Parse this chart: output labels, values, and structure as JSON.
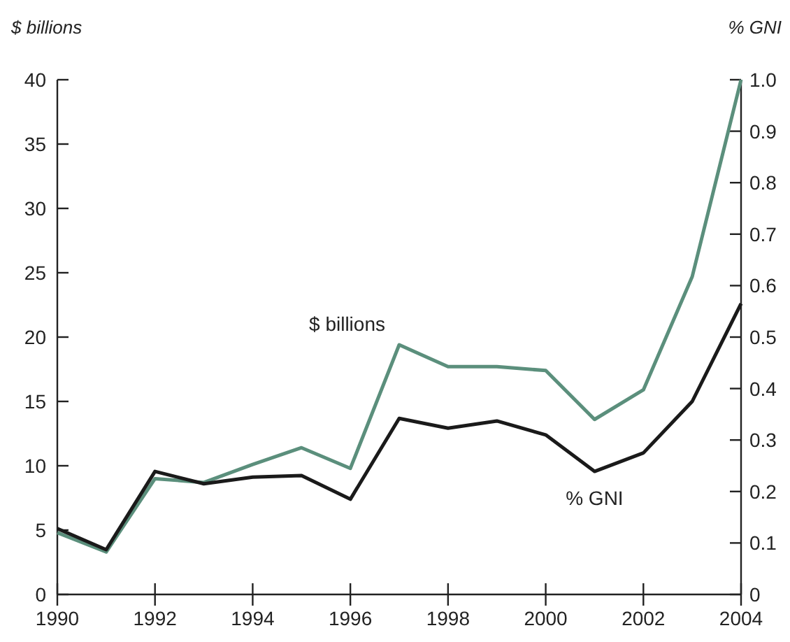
{
  "chart_data": {
    "type": "line",
    "ylabel": "$ billions",
    "y2label": "% GNI",
    "x": [
      1990,
      1991,
      1992,
      1993,
      1994,
      1995,
      1996,
      1997,
      1998,
      1999,
      2000,
      2001,
      2002,
      2003,
      2004
    ],
    "series": [
      {
        "name": "$ billions",
        "color": "#5b8f7c",
        "values": [
          4.8,
          3.3,
          9.0,
          8.7,
          10.1,
          11.4,
          9.8,
          19.4,
          17.7,
          17.7,
          17.4,
          13.6,
          15.9,
          24.7,
          40
        ]
      },
      {
        "name": "% GNI",
        "color": "#1a1a1a",
        "axis": "y2",
        "values": [
          0.128,
          0.087,
          0.239,
          0.215,
          0.228,
          0.231,
          0.185,
          0.342,
          0.323,
          0.337,
          0.31,
          0.239,
          0.275,
          0.375,
          0.565
        ]
      }
    ],
    "xlim": [
      1990,
      2004
    ],
    "xticks": [
      1990,
      1992,
      1994,
      1996,
      1998,
      2000,
      2002,
      2004
    ],
    "ylim": [
      0,
      40
    ],
    "yticks": [
      0,
      5,
      10,
      15,
      20,
      25,
      30,
      35,
      40
    ],
    "y2lim": [
      0,
      1
    ],
    "y2ticks": [
      0,
      {
        "value": 0.1,
        "label": "0.1"
      },
      {
        "value": 0.2,
        "label": "0.2"
      },
      {
        "value": 0.3,
        "label": "0.3"
      },
      {
        "value": 0.4,
        "label": "0.4"
      },
      {
        "value": 0.5,
        "label": "0.5"
      },
      {
        "value": 0.6,
        "label": "0.6"
      },
      {
        "value": 0.7,
        "label": "0.7"
      },
      {
        "value": 0.8,
        "label": "0.8"
      },
      {
        "value": 0.9,
        "label": "0.9"
      },
      {
        "value": 1,
        "label": "1.0"
      }
    ],
    "grid": false,
    "legend": false,
    "marker": "none",
    "line_style": "solid"
  }
}
